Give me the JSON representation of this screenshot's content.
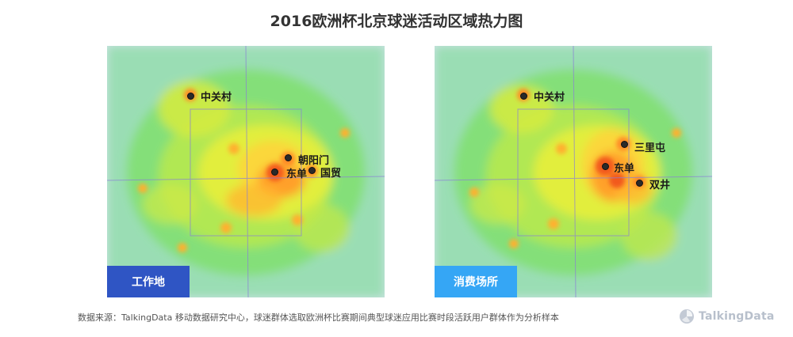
{
  "title": "2016欧洲杯北京球迷活动区域热力图",
  "maps": [
    {
      "tag": "工作地",
      "tag_color": "#2f55c4",
      "places": [
        {
          "name": "中关村"
        },
        {
          "name": "朝阳门"
        },
        {
          "name": "东单"
        },
        {
          "name": "国贸"
        }
      ]
    },
    {
      "tag": "消费场所",
      "tag_color": "#35a6f5",
      "places": [
        {
          "name": "中关村"
        },
        {
          "name": "三里屯"
        },
        {
          "name": "东单"
        },
        {
          "name": "双井"
        }
      ]
    }
  ],
  "source": "数据来源：TalkingData 移动数据研究中心，球迷群体选取欧洲杯比赛期间典型球迷应用比赛时段活跃用户群体作为分析样本",
  "brand": "TalkingData",
  "heat_colors": {
    "low": "#7ee06a",
    "mid": "#e8ee3a",
    "high": "#ff9a2a",
    "peak": "#f25a1c"
  }
}
